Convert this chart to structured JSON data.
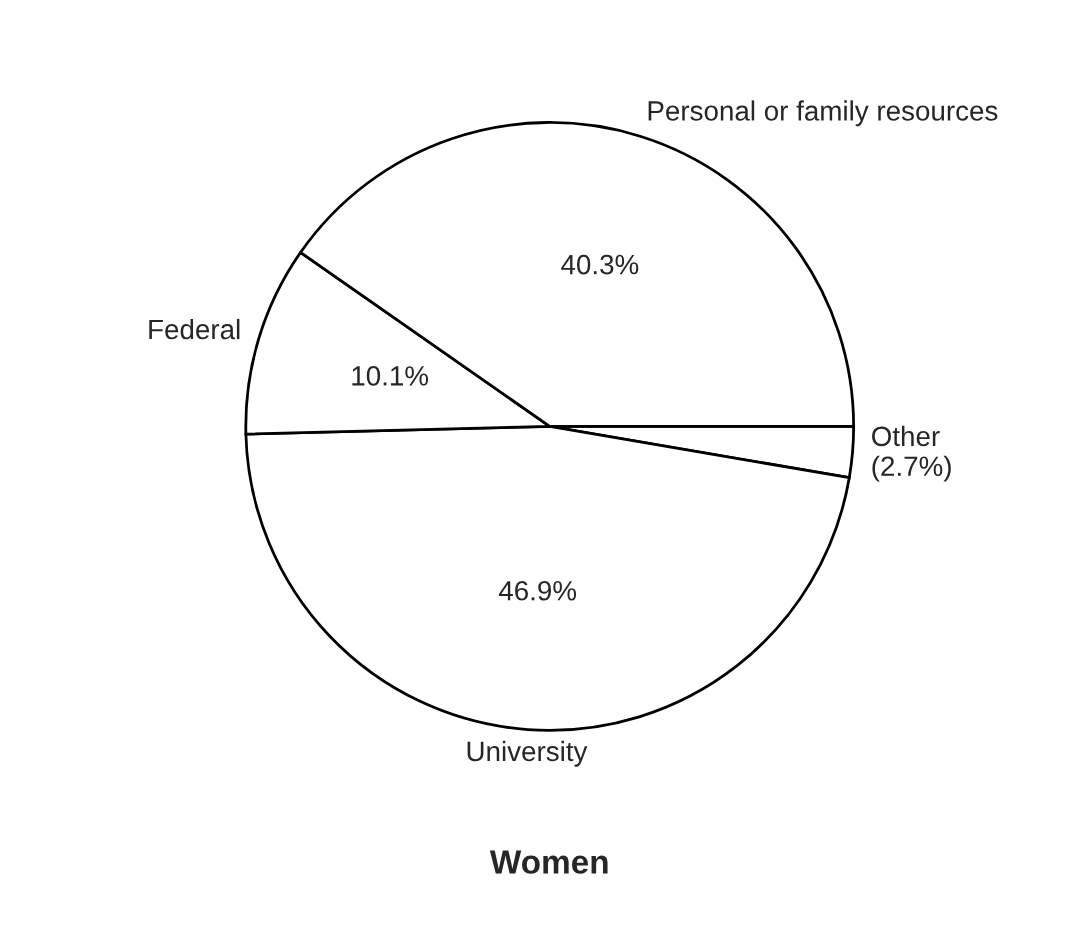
{
  "chart_data": {
    "type": "pie",
    "title": "Women",
    "categories": [
      "Other",
      "University",
      "Federal",
      "Personal or family resources"
    ],
    "values": [
      2.7,
      46.9,
      10.1,
      40.3
    ],
    "colors": [
      "#ffffff",
      "#ffffff",
      "#ffffff",
      "#ffffff"
    ],
    "value_labels": [
      "(2.7%)",
      "46.9%",
      "10.1%",
      "40.3%"
    ],
    "legend": false
  }
}
